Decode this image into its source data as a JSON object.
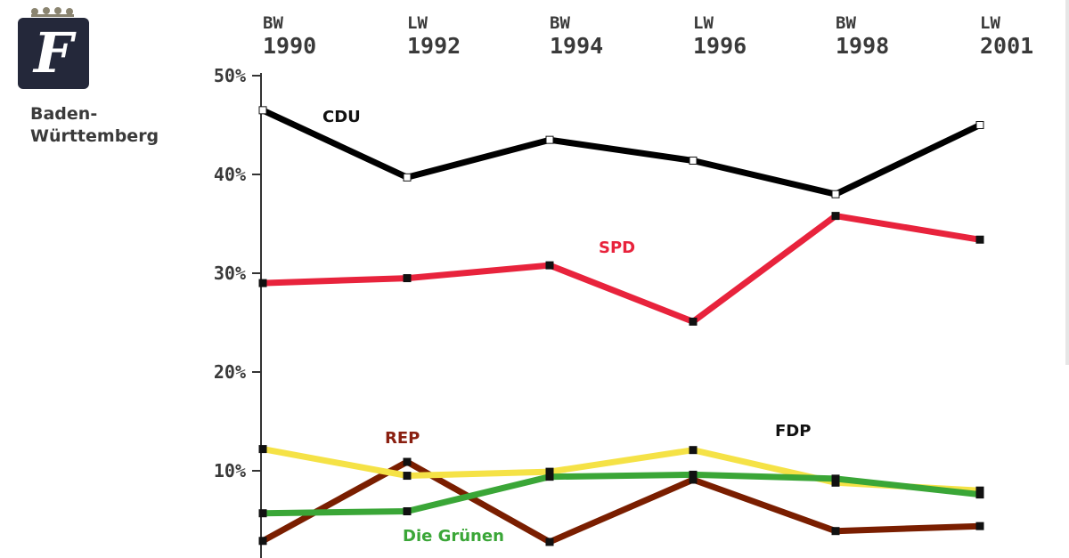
{
  "logo": {
    "letter": "F",
    "crown_icon": "crown-icon"
  },
  "region": {
    "line1": "Baden-",
    "line2": "Württemberg"
  },
  "chart_data": {
    "type": "line",
    "x_labels": [
      {
        "kind": "BW",
        "year": "1990"
      },
      {
        "kind": "LW",
        "year": "1992"
      },
      {
        "kind": "BW",
        "year": "1994"
      },
      {
        "kind": "LW",
        "year": "1996"
      },
      {
        "kind": "BW",
        "year": "1998"
      },
      {
        "kind": "LW",
        "year": "2001"
      }
    ],
    "y_ticks": [
      "50%",
      "40%",
      "30%",
      "20%",
      "10%"
    ],
    "ylim": [
      0,
      50
    ],
    "grid": false,
    "series": [
      {
        "name": "CDU",
        "color": "#000000",
        "values": [
          46.5,
          39.7,
          43.5,
          41.4,
          38.0,
          45.0
        ]
      },
      {
        "name": "SPD",
        "color": "#e8233c",
        "values": [
          29.0,
          29.5,
          30.8,
          25.1,
          35.8,
          33.4
        ]
      },
      {
        "name": "REP",
        "color": "#7a1e00",
        "values": [
          2.9,
          10.9,
          2.8,
          9.1,
          3.9,
          4.4
        ]
      },
      {
        "name": "FDP",
        "color": "#f5e246",
        "values": [
          12.2,
          9.5,
          9.9,
          12.1,
          8.8,
          8.0
        ]
      },
      {
        "name": "Die Grünen",
        "color": "#3aa637",
        "values": [
          5.7,
          5.9,
          9.4,
          9.6,
          9.2,
          7.6
        ]
      }
    ]
  }
}
